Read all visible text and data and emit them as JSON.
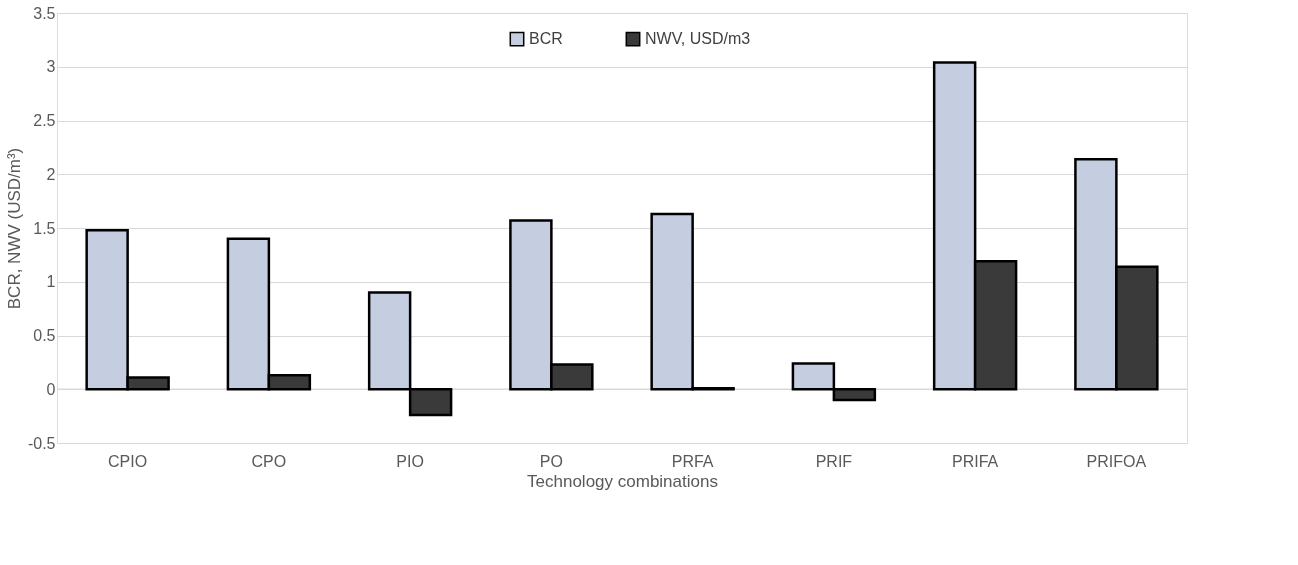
{
  "chart_data": {
    "type": "bar",
    "xlabel": "Technology combinations",
    "ylabel": "BCR, NWV (USD/m³)",
    "categories": [
      "CPIO",
      "CPO",
      "PIO",
      "PO",
      "PRFA",
      "PRIF",
      "PRIFA",
      "PRIFOA"
    ],
    "series": [
      {
        "name": "BCR",
        "color": "#c5cde0",
        "values": [
          1.48,
          1.4,
          0.9,
          1.57,
          1.63,
          0.24,
          3.04,
          2.14
        ]
      },
      {
        "name": "NWV, USD/m3",
        "color": "#3a3a3a",
        "values": [
          0.11,
          0.13,
          -0.24,
          0.23,
          0.01,
          -0.1,
          1.19,
          1.14
        ]
      }
    ],
    "ylim": [
      -0.5,
      3.5
    ],
    "yticks": [
      -0.5,
      0,
      0.5,
      1,
      1.5,
      2,
      2.5,
      3,
      3.5
    ],
    "grid": "y",
    "legend": "top"
  }
}
